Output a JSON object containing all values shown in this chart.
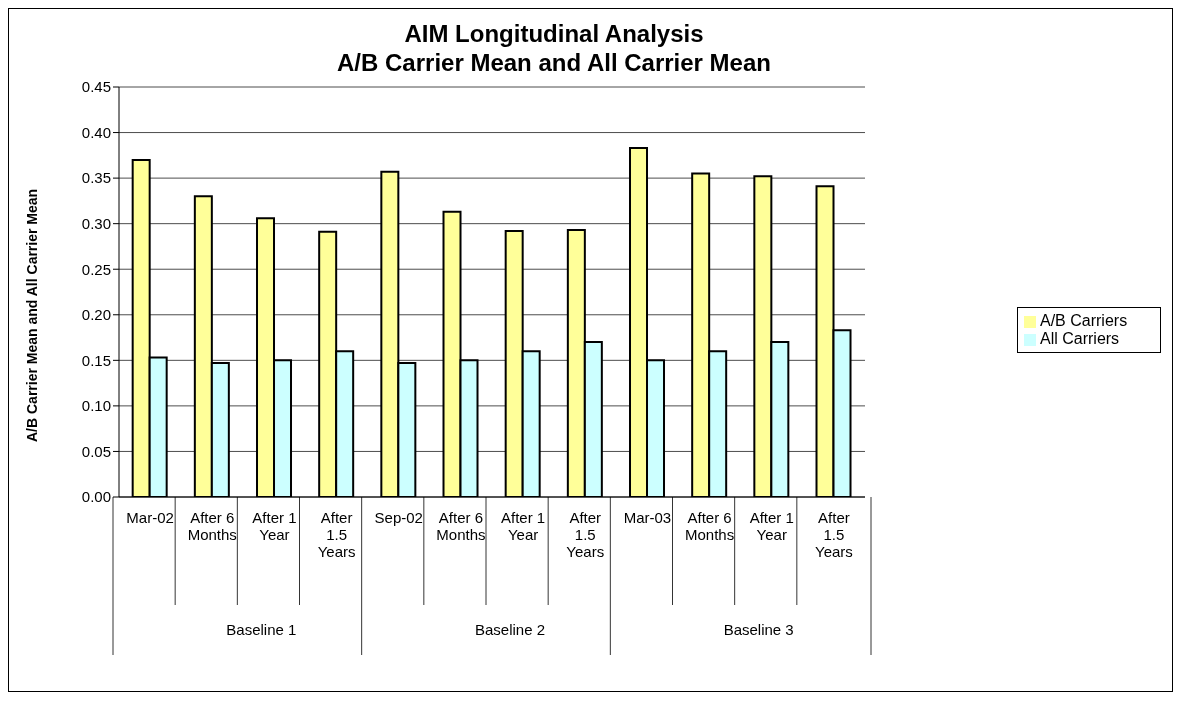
{
  "chart_data": {
    "type": "bar",
    "title": "AIM Longitudinal Analysis\nA/B Carrier Mean and All Carrier Mean",
    "ylabel": "A/B Carrier Mean and All Carrier Mean",
    "categories": [
      "Mar-02",
      "After 6 Months",
      "After 1 Year",
      "After 1.5 Years",
      "Sep-02",
      "After 6 Months",
      "After 1 Year",
      "After 1.5 Years",
      "Mar-03",
      "After 6 Months",
      "After 1 Year",
      "After 1.5 Years"
    ],
    "series": [
      {
        "name": "A/B Carriers",
        "color": "#ffff99",
        "values": [
          0.37,
          0.33,
          0.306,
          0.291,
          0.357,
          0.313,
          0.292,
          0.293,
          0.383,
          0.355,
          0.352,
          0.341
        ]
      },
      {
        "name": "All Carriers",
        "color": "#ccffff",
        "values": [
          0.153,
          0.147,
          0.15,
          0.16,
          0.147,
          0.15,
          0.16,
          0.17,
          0.15,
          0.16,
          0.17,
          0.183
        ]
      }
    ],
    "annotations": [
      "Baseline 1",
      "Baseline 2",
      "Baseline 3"
    ],
    "ylim": [
      0,
      0.45
    ],
    "yticks": [
      {
        "value": 0,
        "label": "0.00"
      },
      0.05,
      {
        "value": 0.1,
        "label": "0.10"
      },
      0.15,
      {
        "value": 0.2,
        "label": "0.20"
      },
      0.25,
      {
        "value": 0.3,
        "label": "0.30"
      },
      0.35,
      {
        "value": 0.4,
        "label": "0.40"
      },
      0.45
    ],
    "grid": "y",
    "legend": "right"
  }
}
